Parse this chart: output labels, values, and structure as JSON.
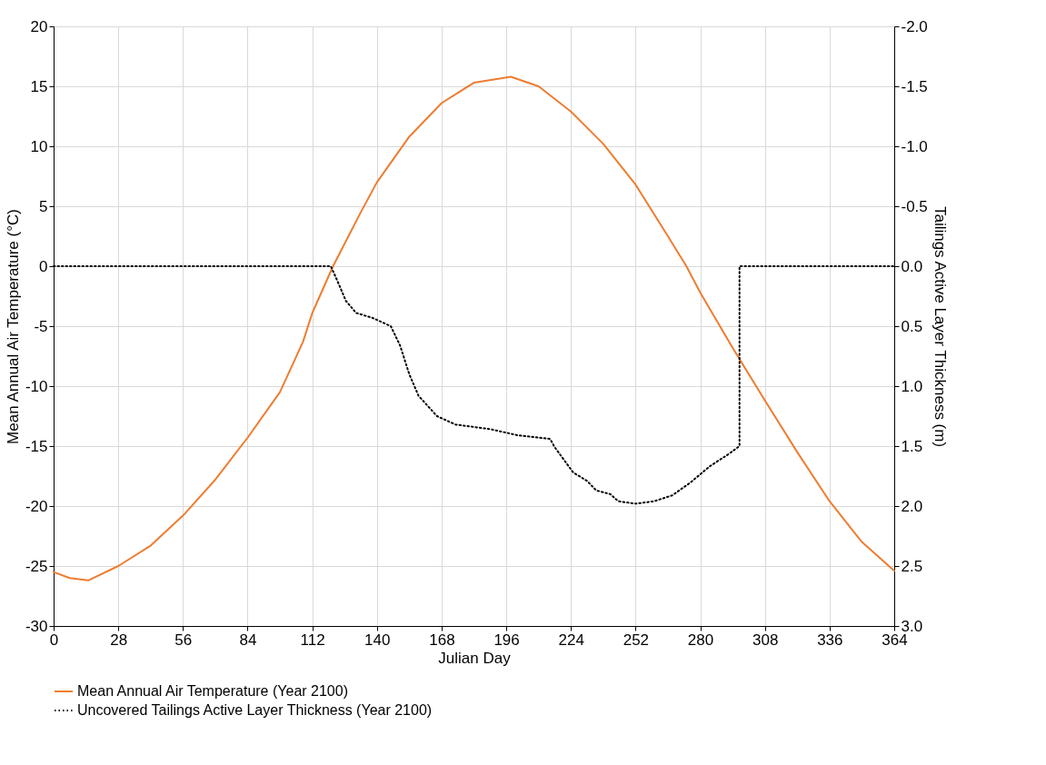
{
  "chart_data": {
    "type": "line",
    "xlabel": "Julian Day",
    "ylabel": "Mean Annual Air Temperature (°C)",
    "y2label": "Tailings Active Layer Thickness (m)",
    "xlim": [
      0,
      364
    ],
    "xticks": [
      0,
      28,
      56,
      84,
      112,
      140,
      168,
      196,
      224,
      252,
      280,
      308,
      336,
      364
    ],
    "ylim": [
      -30,
      20
    ],
    "yticks": [
      -30,
      -25,
      -20,
      -15,
      -10,
      -5,
      0,
      5,
      10,
      15,
      20
    ],
    "y2lim": [
      3.0,
      -2.0
    ],
    "y2ticks": [
      {
        "value": -2,
        "label": "-2.0"
      },
      {
        "value": -1.5,
        "label": "-1.5"
      },
      {
        "value": -1,
        "label": "-1.0"
      },
      {
        "value": -0.5,
        "label": "-0.5"
      },
      {
        "value": 0,
        "label": "0.0"
      },
      {
        "value": 0.5,
        "label": "0.5"
      },
      {
        "value": 1,
        "label": "1.0"
      },
      {
        "value": 1.5,
        "label": "1.5"
      },
      {
        "value": 2,
        "label": "2.0"
      },
      {
        "value": 2.5,
        "label": "2.5"
      },
      {
        "value": 3,
        "label": "3.0"
      }
    ],
    "grid": true,
    "legend": "bottom",
    "marker": "none",
    "series": [
      {
        "name": "Mean Annual Air Temperature (Year 2100)",
        "color": "#ed7d31",
        "line_style": "solid",
        "x": [
          0,
          7,
          15,
          28,
          42,
          56,
          70,
          84,
          98,
          108,
          112,
          121,
          133,
          140,
          154,
          168,
          182,
          198,
          210,
          224,
          238,
          252,
          266,
          274,
          280,
          294,
          308,
          322,
          336,
          350,
          364
        ],
        "values": [
          -25.5,
          -26.0,
          -26.2,
          -25.0,
          -23.3,
          -20.8,
          -17.8,
          -14.3,
          -10.5,
          -6.3,
          -3.9,
          0,
          4.5,
          7.0,
          10.8,
          13.6,
          15.3,
          15.8,
          15.0,
          12.9,
          10.2,
          6.8,
          2.5,
          0,
          -2.2,
          -6.8,
          -11.2,
          -15.5,
          -19.6,
          -23.0,
          -25.4
        ]
      },
      {
        "name": "Uncovered Tailings Active Layer Thickness (Year 2100)",
        "color": "#000000",
        "line_style": "dotted",
        "axis": "y2",
        "x": [
          0,
          120,
          122.6,
          126.6,
          131,
          138,
          146,
          150,
          154,
          158,
          166,
          174,
          189.5,
          201,
          215,
          217,
          225,
          231,
          235,
          241,
          244.5,
          252,
          260,
          268,
          276,
          284,
          292,
          297,
          297,
          364
        ],
        "values": [
          0,
          0,
          0.11,
          0.29,
          0.39,
          0.43,
          0.5,
          0.66,
          0.9,
          1.08,
          1.25,
          1.32,
          1.36,
          1.41,
          1.44,
          1.51,
          1.72,
          1.79,
          1.87,
          1.9,
          1.96,
          1.98,
          1.96,
          1.91,
          1.8,
          1.67,
          1.57,
          1.5,
          0,
          0
        ]
      }
    ]
  }
}
